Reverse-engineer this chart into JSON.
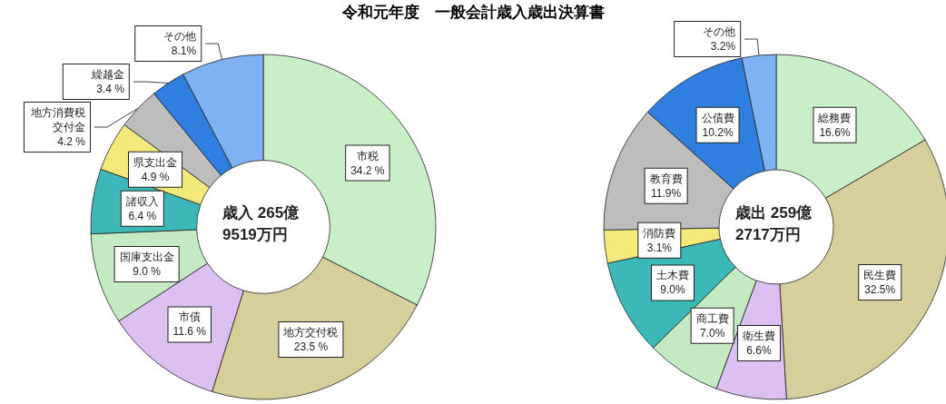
{
  "chart_data": [
    {
      "type": "donut",
      "title": "令和元年度　一般会計歳入歳出決算書",
      "annotations": [
        "歳入 265億\n9519万円"
      ],
      "categories": [
        "市税",
        "地方交付税",
        "市債",
        "国庫支出金",
        "諸収入",
        "県支出金",
        "地方消費税交付金",
        "繰越金",
        "その他"
      ],
      "values": [
        34.2,
        23.5,
        11.6,
        9.0,
        6.4,
        4.9,
        4.2,
        3.4,
        8.1
      ],
      "value_labels": [
        "34.2 %",
        "23.5 %",
        "11.6 %",
        "9.0 %",
        "6.4 %",
        "4.9 %",
        "4.2 %",
        "3.4 %",
        "8.1%"
      ],
      "colors": [
        "#c8efc8",
        "#d6cf9c",
        "#dcc0f2",
        "#c4eac4",
        "#3cb8b8",
        "#f4ea7c",
        "#bdbdbd",
        "#2f7fe0",
        "#7fb2f2"
      ]
    },
    {
      "type": "donut",
      "annotations": [
        "歳出 259億\n2717万円"
      ],
      "categories": [
        "総務費",
        "民生費",
        "衛生費",
        "商工費",
        "土木費",
        "消防費",
        "教育費",
        "公債費",
        "その他"
      ],
      "values": [
        16.6,
        32.5,
        6.6,
        7.0,
        9.0,
        3.1,
        11.9,
        10.2,
        3.2
      ],
      "value_labels": [
        "16.6%",
        "32.5%",
        "6.6%",
        "7.0%",
        "9.0%",
        "3.1%",
        "11.9%",
        "10.2%",
        "3.2%"
      ],
      "colors": [
        "#c8efc8",
        "#d6cf9c",
        "#dcc0f2",
        "#c4eac4",
        "#3cb8b8",
        "#f4ea7c",
        "#bdbdbd",
        "#2f7fe0",
        "#7fb2f2"
      ]
    }
  ]
}
